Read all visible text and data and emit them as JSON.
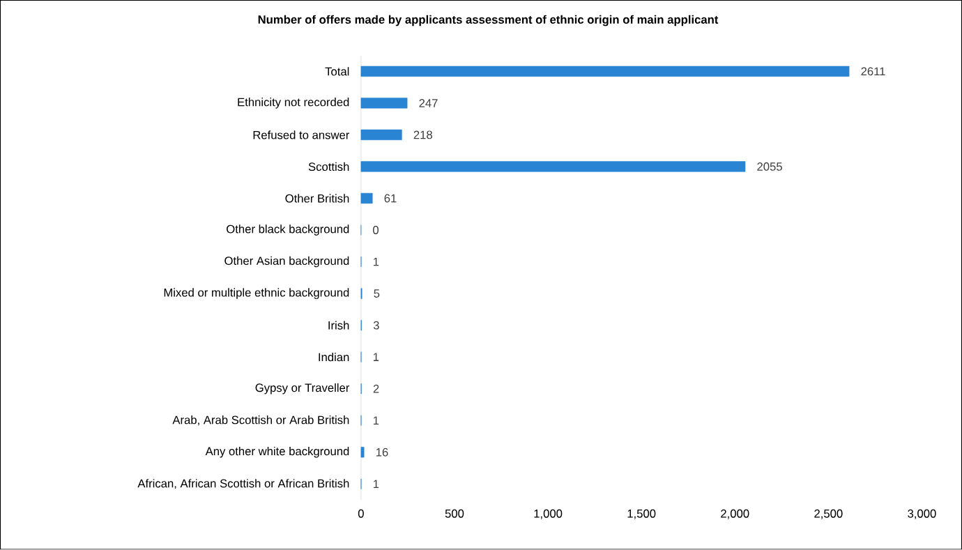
{
  "chart_data": {
    "type": "bar",
    "orientation": "horizontal",
    "title": "Number of offers made by applicants assessment of ethnic origin of main applicant",
    "categories": [
      "Total",
      "Ethnicity not recorded",
      "Refused to answer",
      "Scottish",
      "Other British",
      "Other black background",
      "Other Asian background",
      "Mixed or multiple ethnic background",
      "Irish",
      "Indian",
      "Gypsy or Traveller",
      "Arab, Arab Scottish or Arab British",
      "Any other white background",
      "African, African Scottish or African British"
    ],
    "values": [
      2611,
      247,
      218,
      2055,
      61,
      0,
      1,
      5,
      3,
      1,
      2,
      1,
      16,
      1
    ],
    "color": "#2a84d4",
    "data_labels": true,
    "xlim": [
      0,
      3000
    ],
    "xticks": [
      0,
      500,
      {
        "value": 1000,
        "label": "1,000"
      },
      {
        "value": 1500,
        "label": "1,500"
      },
      {
        "value": 2000,
        "label": "2,000"
      },
      {
        "value": 2500,
        "label": "2,500"
      },
      {
        "value": 3000,
        "label": "3,000"
      }
    ]
  }
}
